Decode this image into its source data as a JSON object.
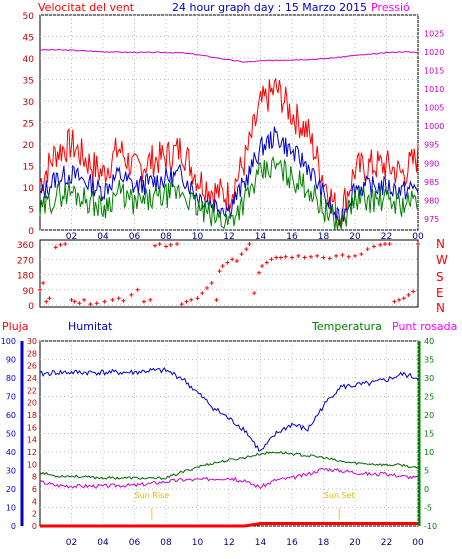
{
  "header": {
    "wind_label": "Velocitat del vent",
    "title": "24 hour graph day : 15 Marzo 2015",
    "pressure_label": "Pressió"
  },
  "wind_dir_labels": [
    "N",
    "W",
    "S",
    "E",
    "N"
  ],
  "bottom_labels": {
    "rain": "Pluja",
    "humidity": "Humitat",
    "temperature": "Temperatura",
    "dew": "Punt rosada"
  },
  "annotations": {
    "sunrise": "Sun Rise",
    "sunset": "Sun Set"
  },
  "colors": {
    "wind_gust": "#ff0000",
    "wind_avg": "#0000cc",
    "wind_min": "#008000",
    "pressure": "#cc00cc",
    "direction": "#ff0000",
    "humidity": "#0000cc",
    "temperature": "#006400",
    "dew": "#cc00cc",
    "rain": "#ff0000",
    "sun": "#ffcc00",
    "grid": "#bbbbbb"
  },
  "chart_data": [
    {
      "type": "line",
      "x_ticks": [
        "02",
        "04",
        "06",
        "08",
        "10",
        "12",
        "14",
        "16",
        "18",
        "20",
        "22",
        "00"
      ],
      "y_left_ticks": [
        0,
        5,
        10,
        15,
        20,
        25,
        30,
        35,
        40,
        45,
        50
      ],
      "y_left_range": [
        0,
        50
      ],
      "y_right_ticks": [
        975,
        980,
        985,
        990,
        995,
        1000,
        1005,
        1010,
        1015,
        1020,
        1025
      ],
      "y_right_range": [
        972,
        1030
      ],
      "hours": [
        0,
        1,
        2,
        3,
        4,
        5,
        6,
        7,
        8,
        9,
        10,
        11,
        12,
        13,
        14,
        15,
        16,
        17,
        18,
        19,
        20,
        21,
        22,
        23,
        24
      ],
      "series": [
        {
          "name": "Velocitat del vent",
          "axis": "left",
          "values": [
            11,
            18,
            20,
            16,
            13,
            19,
            14,
            16,
            17,
            19,
            12,
            9,
            8,
            16,
            29,
            33,
            27,
            23,
            12,
            3,
            14,
            15,
            15,
            13,
            17
          ]
        },
        {
          "name": "",
          "axis": "left",
          "values": [
            8,
            12,
            13,
            11,
            9,
            13,
            10,
            11,
            12,
            13,
            8,
            6,
            5,
            11,
            19,
            22,
            18,
            15,
            8,
            2,
            10,
            10,
            10,
            9,
            10
          ]
        },
        {
          "name": "",
          "axis": "left",
          "values": [
            4,
            8,
            9,
            7,
            5,
            9,
            6,
            7,
            8,
            9,
            5,
            3,
            2,
            7,
            13,
            15,
            12,
            10,
            5,
            1,
            7,
            7,
            7,
            6,
            7
          ]
        },
        {
          "name": "Pressió",
          "axis": "right",
          "values": [
            1020.6,
            1020.6,
            1020.5,
            1020.3,
            1020.1,
            1020.0,
            1019.9,
            1019.9,
            1019.9,
            1019.8,
            1019.3,
            1018.6,
            1017.9,
            1017.3,
            1017.6,
            1017.8,
            1017.9,
            1018.0,
            1018.2,
            1018.6,
            1019.1,
            1019.4,
            1019.8,
            1020.1,
            1019.9
          ]
        }
      ]
    },
    {
      "type": "scatter",
      "y_ticks": [
        0,
        90,
        180,
        270,
        360
      ],
      "y_range": [
        0,
        360
      ],
      "points": [
        [
          0.0,
          90
        ],
        [
          0.2,
          130
        ],
        [
          0.4,
          20
        ],
        [
          0.6,
          40
        ],
        [
          1.0,
          340
        ],
        [
          1.3,
          355
        ],
        [
          1.6,
          360
        ],
        [
          2.0,
          30
        ],
        [
          2.2,
          20
        ],
        [
          2.5,
          10
        ],
        [
          2.8,
          30
        ],
        [
          3.2,
          5
        ],
        [
          3.6,
          10
        ],
        [
          4.1,
          20
        ],
        [
          4.6,
          30
        ],
        [
          5.0,
          40
        ],
        [
          5.3,
          25
        ],
        [
          5.8,
          60
        ],
        [
          6.2,
          90
        ],
        [
          6.6,
          20
        ],
        [
          7.0,
          30
        ],
        [
          7.3,
          350
        ],
        [
          7.6,
          360
        ],
        [
          8.0,
          345
        ],
        [
          8.3,
          355
        ],
        [
          8.7,
          360
        ],
        [
          9.0,
          5
        ],
        [
          9.3,
          20
        ],
        [
          9.6,
          30
        ],
        [
          10.0,
          40
        ],
        [
          10.3,
          70
        ],
        [
          10.6,
          100
        ],
        [
          10.9,
          130
        ],
        [
          11.2,
          30
        ],
        [
          11.4,
          200
        ],
        [
          11.6,
          230
        ],
        [
          11.9,
          250
        ],
        [
          12.2,
          270
        ],
        [
          12.5,
          260
        ],
        [
          12.8,
          300
        ],
        [
          13.1,
          330
        ],
        [
          13.3,
          360
        ],
        [
          13.6,
          70
        ],
        [
          13.9,
          190
        ],
        [
          14.1,
          230
        ],
        [
          14.4,
          250
        ],
        [
          14.7,
          270
        ],
        [
          15.0,
          280
        ],
        [
          15.3,
          280
        ],
        [
          15.6,
          285
        ],
        [
          16.0,
          280
        ],
        [
          16.4,
          290
        ],
        [
          16.8,
          280
        ],
        [
          17.2,
          285
        ],
        [
          17.6,
          290
        ],
        [
          18.0,
          280
        ],
        [
          18.4,
          275
        ],
        [
          18.8,
          290
        ],
        [
          19.2,
          295
        ],
        [
          19.6,
          285
        ],
        [
          20.0,
          290
        ],
        [
          20.4,
          300
        ],
        [
          20.8,
          330
        ],
        [
          21.2,
          345
        ],
        [
          21.6,
          355
        ],
        [
          21.9,
          360
        ],
        [
          22.2,
          360
        ],
        [
          22.5,
          20
        ],
        [
          22.8,
          30
        ],
        [
          23.1,
          40
        ],
        [
          23.4,
          60
        ],
        [
          23.7,
          80
        ],
        [
          24.0,
          360
        ]
      ]
    },
    {
      "type": "line",
      "y_left_ticks_humidity": [
        0,
        10,
        20,
        30,
        40,
        50,
        60,
        70,
        80,
        90,
        100
      ],
      "y_left_ticks_rain": [
        0,
        2,
        4,
        6,
        8,
        10,
        12,
        14,
        16,
        18,
        20,
        22,
        24,
        26,
        28,
        30
      ],
      "y_right_ticks": [
        -10,
        -5,
        0,
        5,
        10,
        15,
        20,
        25,
        30,
        35,
        40
      ],
      "humidity_range": [
        0,
        100
      ],
      "rain_range": [
        0,
        30
      ],
      "temp_range": [
        -10,
        40
      ],
      "hours": [
        0,
        1,
        2,
        3,
        4,
        5,
        6,
        7,
        8,
        9,
        10,
        11,
        12,
        13,
        14,
        15,
        16,
        17,
        18,
        19,
        20,
        21,
        22,
        23,
        24
      ],
      "series": [
        {
          "name": "Humitat",
          "axis": "humidity",
          "values": [
            82,
            83,
            83,
            83,
            83,
            83,
            83,
            84,
            84,
            80,
            72,
            64,
            58,
            52,
            40,
            50,
            55,
            52,
            65,
            75,
            76,
            77,
            79,
            82,
            80
          ]
        },
        {
          "name": "Temperatura",
          "axis": "temp",
          "values": [
            4.5,
            3.5,
            3.5,
            3.2,
            3.0,
            3.0,
            3.0,
            2.8,
            3.0,
            4.5,
            6.0,
            7.0,
            7.8,
            8.5,
            9.5,
            10.0,
            9.5,
            9.0,
            8.5,
            7.5,
            7.0,
            6.8,
            6.5,
            6.5,
            5.5
          ]
        },
        {
          "name": "Punt rosada",
          "axis": "temp",
          "values": [
            2.0,
            1.0,
            0.8,
            0.8,
            0.8,
            1.0,
            1.0,
            1.5,
            2.0,
            2.5,
            2.5,
            2.8,
            3.0,
            2.0,
            0.5,
            2.5,
            3.0,
            4.0,
            5.5,
            5.0,
            4.5,
            4.0,
            4.0,
            3.5,
            3.0
          ]
        },
        {
          "name": "Pluja",
          "axis": "rain",
          "values": [
            0,
            0,
            0,
            0,
            0,
            0,
            0,
            0,
            0,
            0,
            0,
            0,
            0,
            0,
            0.4,
            0.4,
            0.4,
            0.4,
            0.4,
            0.4,
            0.4,
            0.4,
            0.4,
            0.4,
            0.4
          ]
        }
      ],
      "sunrise_hour": 7.1,
      "sunset_hour": 19.0
    }
  ]
}
